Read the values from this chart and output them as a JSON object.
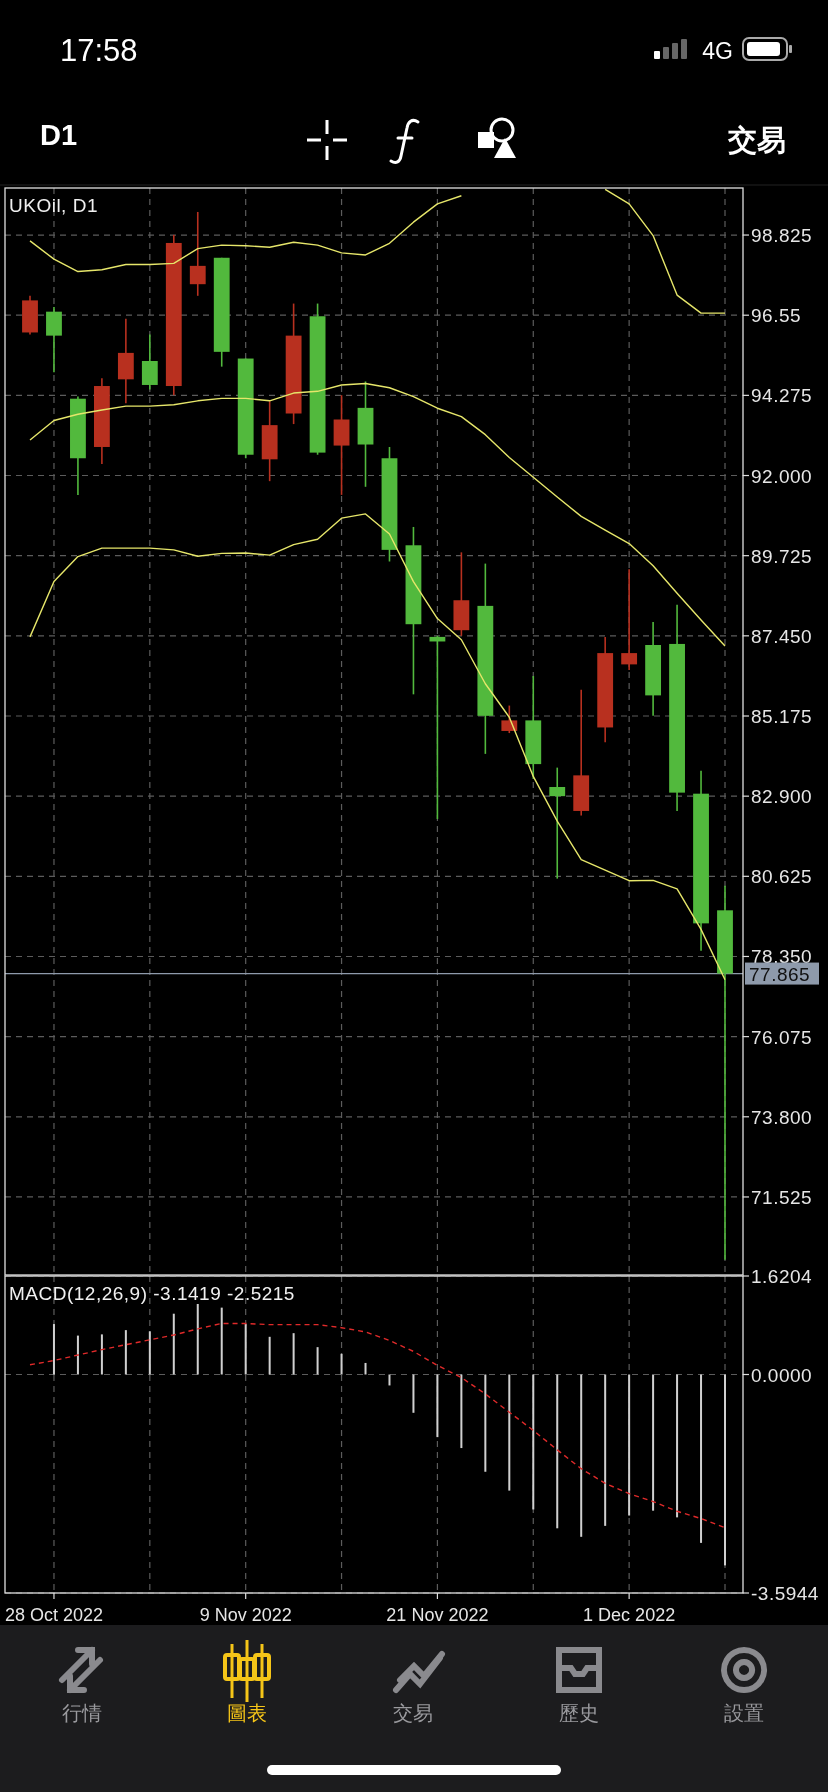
{
  "chart_data": [
    {
      "type": "other",
      "annotations": [
        "17:58",
        "4G",
        "D1",
        "交易",
        "行情",
        "圖表",
        "交易",
        "歷史",
        "設置"
      ]
    },
    {
      "type": "candlestick",
      "title": "UKOil, D1",
      "ohlc": [
        [
          96.06,
          97.1,
          96.0,
          96.97
        ],
        [
          96.65,
          96.78,
          94.93,
          95.97
        ],
        [
          94.18,
          94.24,
          91.45,
          92.49
        ],
        [
          92.81,
          94.76,
          92.33,
          94.54
        ],
        [
          94.73,
          96.45,
          94.05,
          95.48
        ],
        [
          95.25,
          96.0,
          94.44,
          94.57
        ],
        [
          94.54,
          98.83,
          94.28,
          98.6
        ],
        [
          97.43,
          99.48,
          97.1,
          97.95
        ],
        [
          98.18,
          98.18,
          95.09,
          95.51
        ],
        [
          95.32,
          95.32,
          92.49,
          92.59
        ],
        [
          92.46,
          94.11,
          91.84,
          93.43
        ],
        [
          93.76,
          96.88,
          93.46,
          95.97
        ],
        [
          96.52,
          96.88,
          92.59,
          92.65
        ],
        [
          92.85,
          94.28,
          91.45,
          93.59
        ],
        [
          93.92,
          94.67,
          91.68,
          92.88
        ],
        [
          92.49,
          92.81,
          89.56,
          89.89
        ],
        [
          90.02,
          90.54,
          85.79,
          87.78
        ],
        [
          87.42,
          87.45,
          82.25,
          87.29
        ],
        [
          87.61,
          89.82,
          87.45,
          88.46
        ],
        [
          88.3,
          89.5,
          84.1,
          85.18
        ],
        [
          84.75,
          85.47,
          84.69,
          85.05
        ],
        [
          85.05,
          86.31,
          83.39,
          83.81
        ],
        [
          83.16,
          83.71,
          80.56,
          82.9
        ],
        [
          82.48,
          85.92,
          82.35,
          83.49
        ],
        [
          84.85,
          87.42,
          84.43,
          86.96
        ],
        [
          86.64,
          89.34,
          86.48,
          86.96
        ],
        [
          87.19,
          87.84,
          85.18,
          85.76
        ],
        [
          87.22,
          88.33,
          82.48,
          83.0
        ],
        [
          82.97,
          83.62,
          78.51,
          79.29
        ],
        [
          79.66,
          80.36,
          69.74,
          77.865
        ]
      ],
      "colors": [
        "#b8301f",
        "#52b93d",
        "#52b93d",
        "#b8301f",
        "#b8301f",
        "#52b93d",
        "#b8301f",
        "#b8301f",
        "#52b93d",
        "#52b93d",
        "#b8301f",
        "#b8301f",
        "#52b93d",
        "#b8301f",
        "#52b93d",
        "#52b93d",
        "#52b93d",
        "#52b93d",
        "#b8301f",
        "#52b93d",
        "#b8301f",
        "#52b93d",
        "#52b93d",
        "#b8301f",
        "#b8301f",
        "#b8301f",
        "#52b93d",
        "#52b93d",
        "#52b93d",
        "#52b93d"
      ],
      "series": [
        {
          "type": "line",
          "color": "#e6e66a",
          "values": [
            98.66,
            98.14,
            97.79,
            97.84,
            97.99,
            97.99,
            98.02,
            98.44,
            98.54,
            98.52,
            98.48,
            98.62,
            98.54,
            98.32,
            98.26,
            98.59,
            99.19,
            99.71,
            99.94,
            null,
            null,
            null,
            null,
            null,
            100.12,
            99.71,
            98.81,
            97.12,
            96.61,
            96.61
          ]
        },
        {
          "type": "line",
          "color": "#e6e66a",
          "values": [
            93.01,
            93.56,
            93.74,
            93.86,
            93.97,
            93.97,
            94.01,
            94.12,
            94.19,
            94.19,
            94.12,
            94.34,
            94.39,
            94.57,
            94.61,
            94.49,
            94.24,
            93.91,
            93.67,
            93.16,
            92.51,
            91.95,
            91.39,
            90.84,
            90.45,
            90.07,
            89.44,
            88.66,
            87.9,
            87.16
          ]
        },
        {
          "type": "line",
          "color": "#e6e66a",
          "values": [
            87.42,
            88.99,
            89.7,
            89.94,
            89.94,
            89.94,
            89.89,
            89.71,
            89.79,
            89.8,
            89.74,
            90.04,
            90.19,
            90.79,
            90.91,
            90.34,
            88.99,
            87.94,
            87.34,
            86.09,
            85.14,
            83.46,
            82.19,
            81.1,
            80.8,
            80.5,
            80.51,
            80.27,
            79.12,
            77.69
          ]
        }
      ],
      "ylim": [
        69.31,
        100.16
      ],
      "yticks": [
        98.825,
        96.55,
        94.275,
        {
          "value": 92,
          "label": "92.000"
        },
        89.725,
        {
          "value": 87.45,
          "label": "87.450"
        },
        85.175,
        {
          "value": 82.9,
          "label": "82.900"
        },
        80.625,
        {
          "value": 78.35,
          "label": "78.350"
        },
        76.075,
        {
          "value": 73.8,
          "label": "73.800"
        },
        71.525
      ],
      "ref_lines": [
        {
          "axis": "y",
          "value": 77.865,
          "label": "77.865",
          "color": "#8e9aab"
        }
      ],
      "grid": true,
      "tick_labels": "y"
    },
    {
      "type": "bar",
      "title": "MACD(12,26,9) -3.1419 -2.5215",
      "categories": [
        null,
        "28 Oct 2022",
        null,
        null,
        null,
        null,
        null,
        null,
        null,
        "9 Nov 2022",
        null,
        null,
        null,
        null,
        null,
        null,
        null,
        "21 Nov 2022",
        null,
        null,
        null,
        null,
        null,
        null,
        null,
        "1 Dec 2022",
        null,
        null,
        null,
        null
      ],
      "series": [
        {
          "type": "bar",
          "color": "#d0d0d0",
          "values": [
            null,
            0.83,
            0.64,
            0.66,
            0.73,
            0.71,
            1.0,
            1.16,
            1.1,
            0.83,
            0.62,
            0.68,
            0.45,
            0.34,
            0.19,
            -0.18,
            -0.63,
            -1.03,
            -1.21,
            -1.6,
            -1.91,
            -2.22,
            -2.53,
            -2.67,
            -2.49,
            -2.32,
            -2.24,
            -2.35,
            -2.77,
            -3.14
          ]
        },
        {
          "type": "line",
          "color": "#e02a2a",
          "line_style": "dashed",
          "values": [
            0.16,
            0.23,
            0.32,
            0.41,
            0.49,
            0.57,
            0.65,
            0.75,
            0.84,
            0.84,
            0.82,
            0.82,
            0.82,
            0.77,
            0.7,
            0.56,
            0.38,
            0.15,
            -0.05,
            -0.32,
            -0.62,
            -0.92,
            -1.24,
            -1.55,
            -1.79,
            -1.96,
            -2.09,
            -2.25,
            -2.37,
            -2.52
          ]
        }
      ],
      "ylim": [
        -3.5944,
        1.6204
      ],
      "yticks": [
        1.6204,
        {
          "value": 0,
          "label": "0.0000"
        },
        -3.5944
      ],
      "grid": true
    }
  ]
}
